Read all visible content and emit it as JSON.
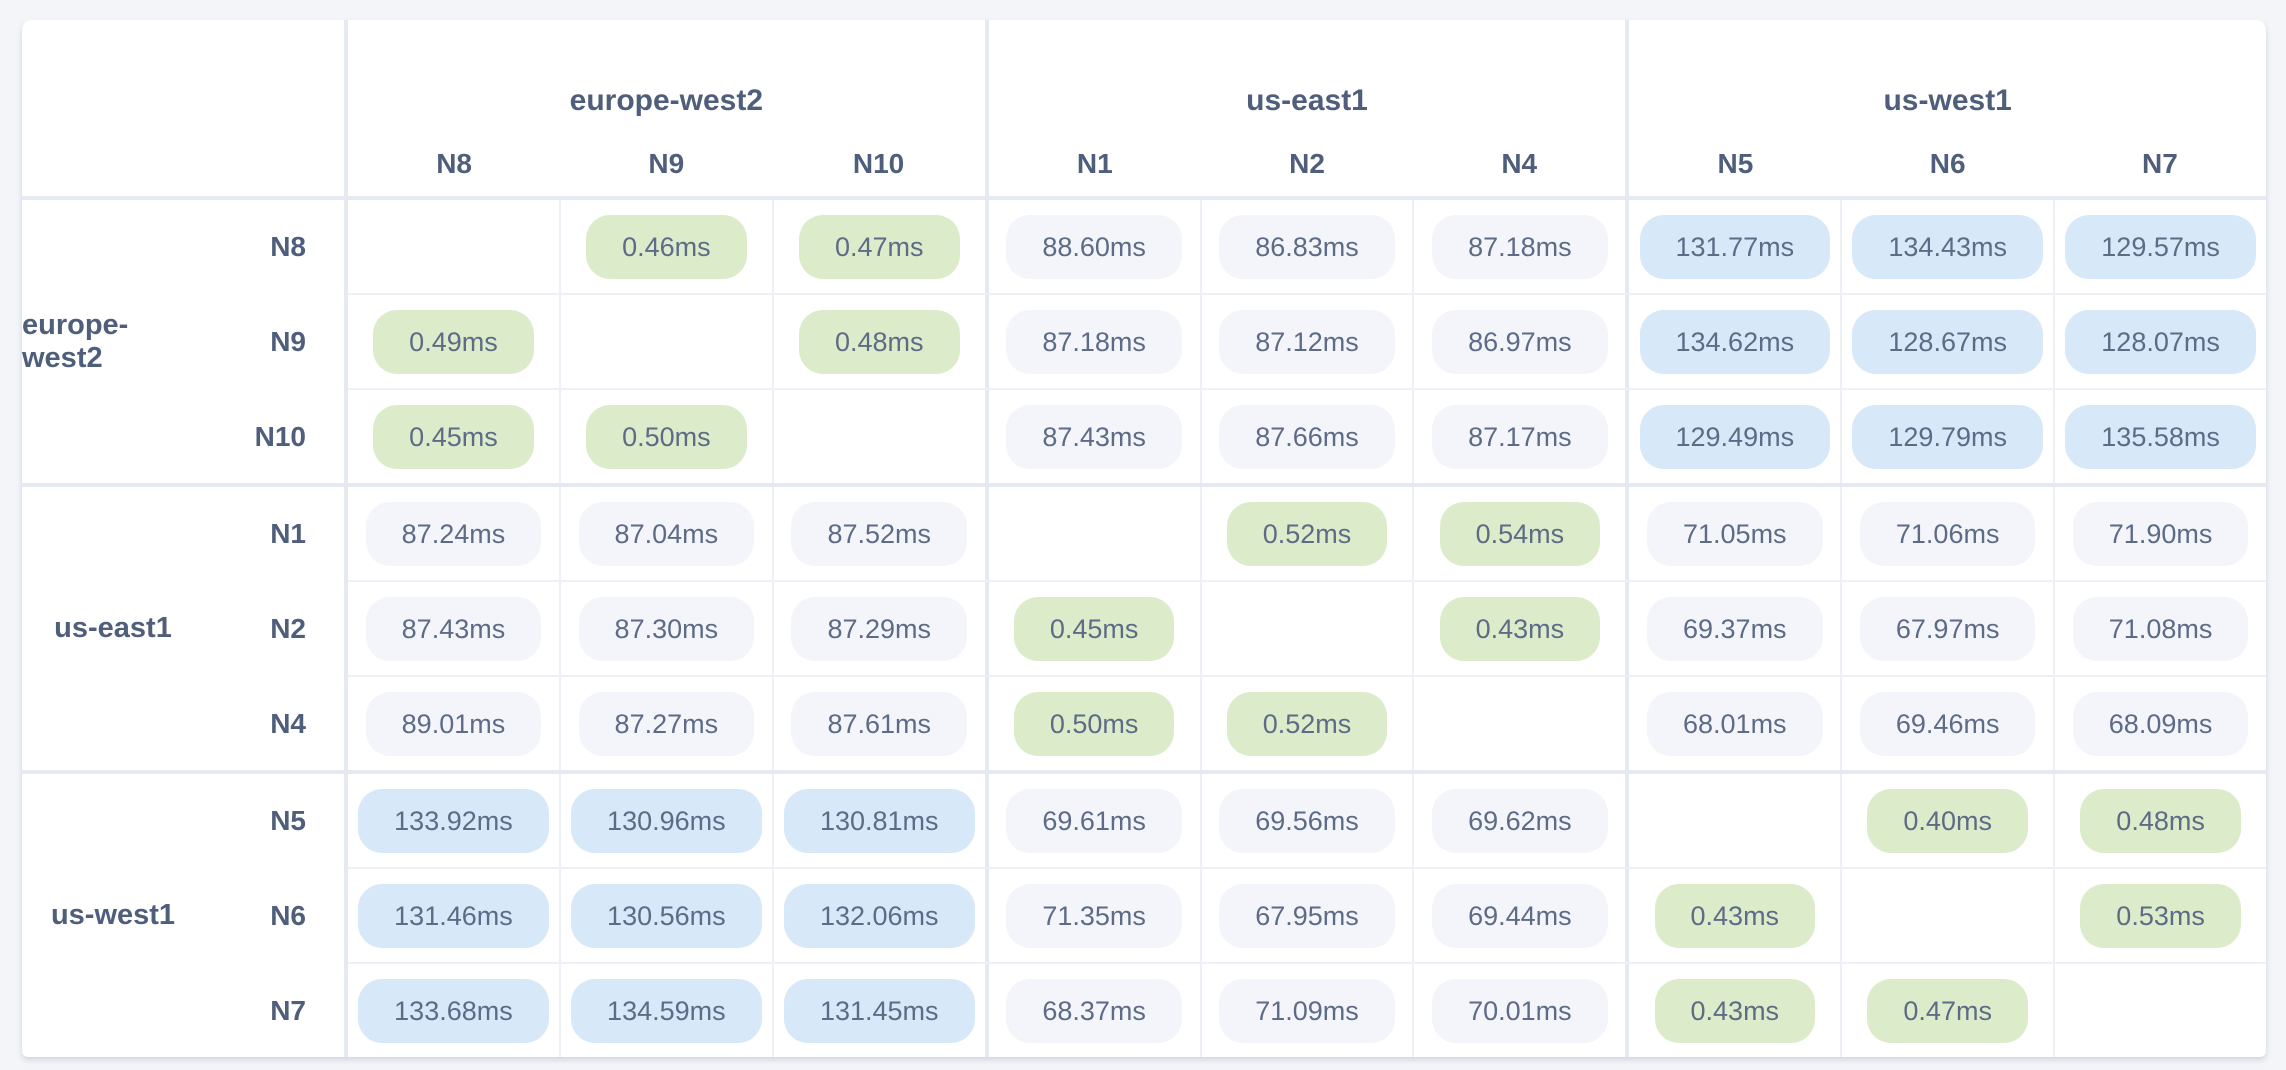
{
  "page": {
    "background_color": "#f3f5f9",
    "description": "Network latency matrix: round-trip latencies between nodes grouped by region"
  },
  "table": {
    "unit": "ms",
    "column_groups": [
      {
        "region": "europe-west2",
        "nodes": [
          "N8",
          "N9",
          "N10"
        ]
      },
      {
        "region": "us-east1",
        "nodes": [
          "N1",
          "N2",
          "N4"
        ]
      },
      {
        "region": "us-west1",
        "nodes": [
          "N5",
          "N6",
          "N7"
        ]
      }
    ],
    "row_groups": [
      {
        "region": "europe-west2",
        "rows": [
          {
            "node": "N8",
            "values": [
              "",
              "0.46ms",
              "0.47ms",
              "88.60ms",
              "86.83ms",
              "87.18ms",
              "131.77ms",
              "134.43ms",
              "129.57ms"
            ]
          },
          {
            "node": "N9",
            "values": [
              "0.49ms",
              "",
              "0.48ms",
              "87.18ms",
              "87.12ms",
              "86.97ms",
              "134.62ms",
              "128.67ms",
              "128.07ms"
            ]
          },
          {
            "node": "N10",
            "values": [
              "0.45ms",
              "0.50ms",
              "",
              "87.43ms",
              "87.66ms",
              "87.17ms",
              "129.49ms",
              "129.79ms",
              "135.58ms"
            ]
          }
        ]
      },
      {
        "region": "us-east1",
        "rows": [
          {
            "node": "N1",
            "values": [
              "87.24ms",
              "87.04ms",
              "87.52ms",
              "",
              "0.52ms",
              "0.54ms",
              "71.05ms",
              "71.06ms",
              "71.90ms"
            ]
          },
          {
            "node": "N2",
            "values": [
              "87.43ms",
              "87.30ms",
              "87.29ms",
              "0.45ms",
              "",
              "0.43ms",
              "69.37ms",
              "67.97ms",
              "71.08ms"
            ]
          },
          {
            "node": "N4",
            "values": [
              "89.01ms",
              "87.27ms",
              "87.61ms",
              "0.50ms",
              "0.52ms",
              "",
              "68.01ms",
              "69.46ms",
              "68.09ms"
            ]
          }
        ]
      },
      {
        "region": "us-west1",
        "rows": [
          {
            "node": "N5",
            "values": [
              "133.92ms",
              "130.96ms",
              "130.81ms",
              "69.61ms",
              "69.56ms",
              "69.62ms",
              "",
              "0.40ms",
              "0.48ms"
            ]
          },
          {
            "node": "N6",
            "values": [
              "131.46ms",
              "130.56ms",
              "132.06ms",
              "71.35ms",
              "67.95ms",
              "69.44ms",
              "0.43ms",
              "",
              "0.53ms"
            ]
          },
          {
            "node": "N7",
            "values": [
              "133.68ms",
              "134.59ms",
              "131.45ms",
              "68.37ms",
              "71.09ms",
              "70.01ms",
              "0.43ms",
              "0.47ms",
              ""
            ]
          }
        ]
      }
    ],
    "latency_colors": {
      "low": "#dcecca",
      "medium": "#f3f5fa",
      "high": "#d7e8f9"
    },
    "thresholds": {
      "low_max_ms": 1,
      "high_min_ms": 100
    }
  }
}
